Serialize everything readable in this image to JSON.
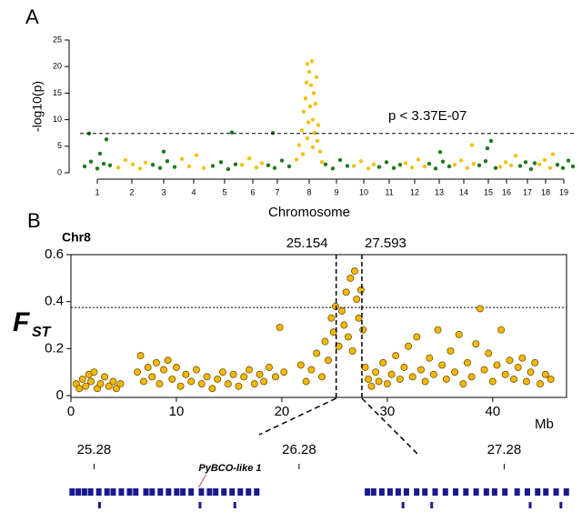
{
  "chart_data": [
    {
      "type": "manhattan",
      "panel_label": "A",
      "xlabel": "Chromosome",
      "ylabel": "-log10(p)",
      "annotation": "p < 3.37E-07",
      "threshold": 7.4,
      "xlim": [
        0,
        545
      ],
      "ylim": [
        0,
        25
      ],
      "yticks": [
        0,
        5,
        10,
        15,
        20,
        25
      ],
      "xticks": [
        {
          "value": 19,
          "label": "1"
        },
        {
          "value": 57,
          "label": "2"
        },
        {
          "value": 92,
          "label": "3"
        },
        {
          "value": 125,
          "label": "4"
        },
        {
          "value": 159,
          "label": "5"
        },
        {
          "value": 190,
          "label": "6"
        },
        {
          "value": 217,
          "label": "7"
        },
        {
          "value": 252,
          "label": "8"
        },
        {
          "value": 282,
          "label": "9"
        },
        {
          "value": 312,
          "label": "10"
        },
        {
          "value": 340,
          "label": "11"
        },
        {
          "value": 368,
          "label": "12"
        },
        {
          "value": 395,
          "label": "13"
        },
        {
          "value": 422,
          "label": "14"
        },
        {
          "value": 449,
          "label": "15"
        },
        {
          "value": 469,
          "label": "16"
        },
        {
          "value": 492,
          "label": "17"
        },
        {
          "value": 512,
          "label": "18"
        },
        {
          "value": 532,
          "label": "19"
        }
      ],
      "series": [
        {
          "color": "#1f7a1f",
          "x": [
            5,
            12,
            19,
            26,
            33,
            10,
            29,
            22,
            80,
            88,
            96,
            104,
            92,
            146,
            155,
            163,
            171,
            167,
            207,
            214,
            222,
            230,
            212,
            270,
            278,
            286,
            294,
            329,
            337,
            345,
            352,
            384,
            391,
            399,
            406,
            396,
            439,
            446,
            452,
            457,
            448,
            484,
            490,
            496,
            500,
            525,
            531,
            537,
            542
          ],
          "values": [
            1.2,
            2.1,
            0.8,
            1.7,
            1.4,
            7.4,
            6.3,
            3.6,
            1.5,
            0.9,
            2.2,
            1.1,
            4.0,
            1.3,
            2.0,
            0.7,
            1.6,
            7.6,
            1.4,
            0.9,
            2.3,
            1.2,
            7.5,
            1.6,
            0.8,
            2.4,
            1.3,
            1.1,
            2.0,
            0.9,
            1.5,
            1.7,
            0.8,
            2.1,
            1.2,
            3.9,
            1.4,
            2.2,
            6.0,
            0.9,
            4.6,
            1.3,
            2.0,
            0.7,
            1.8,
            1.5,
            0.9,
            2.3,
            1.2
          ]
        },
        {
          "color": "#f5c016",
          "x": [
            42,
            50,
            58,
            66,
            72,
            112,
            120,
            128,
            136,
            178,
            186,
            194,
            200,
            238,
            241,
            244,
            246,
            248,
            249,
            250,
            251,
            252,
            253,
            254,
            255,
            256,
            257,
            258,
            259,
            260,
            261,
            262,
            264,
            266,
            245,
            250,
            256,
            301,
            309,
            317,
            323,
            358,
            365,
            372,
            379,
            412,
            419,
            426,
            433,
            431,
            462,
            468,
            474,
            479,
            505,
            511,
            517,
            520
          ],
          "values": [
            1.0,
            2.4,
            1.6,
            0.8,
            1.9,
            2.6,
            1.2,
            3.3,
            0.9,
            1.5,
            2.7,
            1.0,
            1.8,
            2.5,
            5.2,
            8.0,
            11.5,
            14.0,
            17.0,
            20.5,
            9.5,
            19.0,
            12.5,
            16.5,
            21.0,
            10.0,
            15.0,
            7.5,
            13.0,
            18.0,
            6.0,
            9.0,
            4.0,
            2.0,
            3.5,
            6.5,
            4.8,
            1.3,
            2.2,
            0.8,
            1.6,
            1.8,
            1.0,
            2.5,
            1.2,
            1.5,
            2.3,
            0.9,
            1.7,
            5.2,
            1.1,
            2.0,
            1.4,
            3.2,
            1.6,
            2.4,
            0.9,
            3.5
          ]
        }
      ]
    },
    {
      "type": "scatter",
      "panel_label": "B",
      "title": "Chr8",
      "xlabel": "Mb",
      "ylabel": "F",
      "ylabel_subscript": "ST",
      "color": "#f5b800",
      "threshold": 0.375,
      "vlines": [
        25.154,
        27.593
      ],
      "xlim": [
        0,
        47
      ],
      "xticks": [
        0,
        10,
        20,
        30,
        40
      ],
      "ylim": [
        0,
        0.6
      ],
      "yticks": [
        0,
        0.2,
        0.4,
        0.6
      ],
      "x": [
        0.5,
        0.8,
        1.1,
        1.4,
        1.7,
        1.9,
        2.2,
        2.5,
        2.8,
        3.2,
        3.6,
        4.0,
        4.3,
        4.7,
        6.3,
        6.6,
        6.9,
        7.3,
        7.7,
        8.1,
        8.4,
        8.8,
        9.2,
        9.6,
        10.0,
        10.4,
        10.9,
        11.4,
        11.9,
        12.4,
        12.9,
        13.4,
        13.9,
        14.4,
        14.9,
        15.4,
        15.9,
        16.4,
        16.9,
        17.4,
        17.9,
        18.3,
        18.8,
        19.4,
        19.8,
        20.2,
        21.8,
        22.3,
        22.8,
        23.3,
        23.8,
        24.1,
        24.4,
        24.7,
        24.9,
        25.1,
        25.4,
        25.7,
        25.9,
        26.1,
        26.3,
        26.5,
        26.7,
        26.9,
        27.1,
        27.3,
        27.5,
        27.7,
        27.9,
        28.2,
        28.5,
        28.9,
        29.2,
        29.6,
        30.0,
        30.4,
        30.8,
        31.2,
        31.6,
        32.0,
        32.4,
        32.8,
        33.2,
        33.6,
        34.0,
        34.4,
        34.8,
        35.2,
        35.6,
        36.0,
        36.4,
        36.8,
        37.2,
        37.6,
        38.0,
        38.4,
        38.8,
        39.2,
        39.6,
        40.0,
        40.4,
        40.8,
        41.2,
        41.6,
        42.0,
        42.4,
        42.8,
        43.2,
        43.6,
        44.0,
        44.5,
        45.0,
        45.5
      ],
      "values": [
        0.05,
        0.03,
        0.07,
        0.04,
        0.09,
        0.06,
        0.1,
        0.03,
        0.05,
        0.08,
        0.04,
        0.06,
        0.03,
        0.05,
        0.1,
        0.17,
        0.06,
        0.12,
        0.08,
        0.14,
        0.05,
        0.11,
        0.15,
        0.07,
        0.12,
        0.04,
        0.09,
        0.06,
        0.11,
        0.05,
        0.08,
        0.03,
        0.07,
        0.1,
        0.05,
        0.09,
        0.04,
        0.08,
        0.11,
        0.05,
        0.09,
        0.06,
        0.12,
        0.08,
        0.29,
        0.1,
        0.13,
        0.06,
        0.11,
        0.18,
        0.08,
        0.23,
        0.15,
        0.33,
        0.27,
        0.38,
        0.21,
        0.36,
        0.3,
        0.44,
        0.25,
        0.5,
        0.19,
        0.53,
        0.41,
        0.33,
        0.45,
        0.28,
        0.12,
        0.07,
        0.04,
        0.1,
        0.06,
        0.14,
        0.05,
        0.09,
        0.17,
        0.07,
        0.12,
        0.21,
        0.08,
        0.25,
        0.11,
        0.06,
        0.16,
        0.09,
        0.28,
        0.13,
        0.07,
        0.19,
        0.1,
        0.26,
        0.05,
        0.14,
        0.08,
        0.22,
        0.37,
        0.11,
        0.18,
        0.06,
        0.13,
        0.28,
        0.09,
        0.15,
        0.07,
        0.12,
        0.16,
        0.06,
        0.1,
        0.14,
        0.05,
        0.09,
        0.07
      ]
    },
    {
      "type": "gene_track",
      "color": "#1a1a8c",
      "xlim": [
        25.154,
        27.593
      ],
      "xticks": [
        25.28,
        26.28,
        27.28
      ],
      "gene_label": "PyBCO-like 1",
      "gene_label_position": 25.79,
      "row1": [
        25.16,
        25.19,
        25.22,
        25.25,
        25.29,
        25.33,
        25.36,
        25.4,
        25.44,
        25.47,
        25.52,
        25.55,
        25.59,
        25.63,
        25.67,
        25.7,
        25.74,
        25.79,
        25.83,
        25.86,
        25.9,
        25.94,
        25.98,
        26.02,
        26.06,
        26.6,
        26.63,
        26.67,
        26.71,
        26.75,
        26.79,
        26.84,
        26.88,
        26.93,
        26.98,
        27.03,
        27.08,
        27.13,
        27.18,
        27.22,
        27.27,
        27.33,
        27.38,
        27.43,
        27.47,
        27.52,
        27.57
      ],
      "row2": [
        25.3,
        25.79,
        25.96,
        26.78,
        26.92,
        27.4,
        27.55
      ]
    }
  ]
}
